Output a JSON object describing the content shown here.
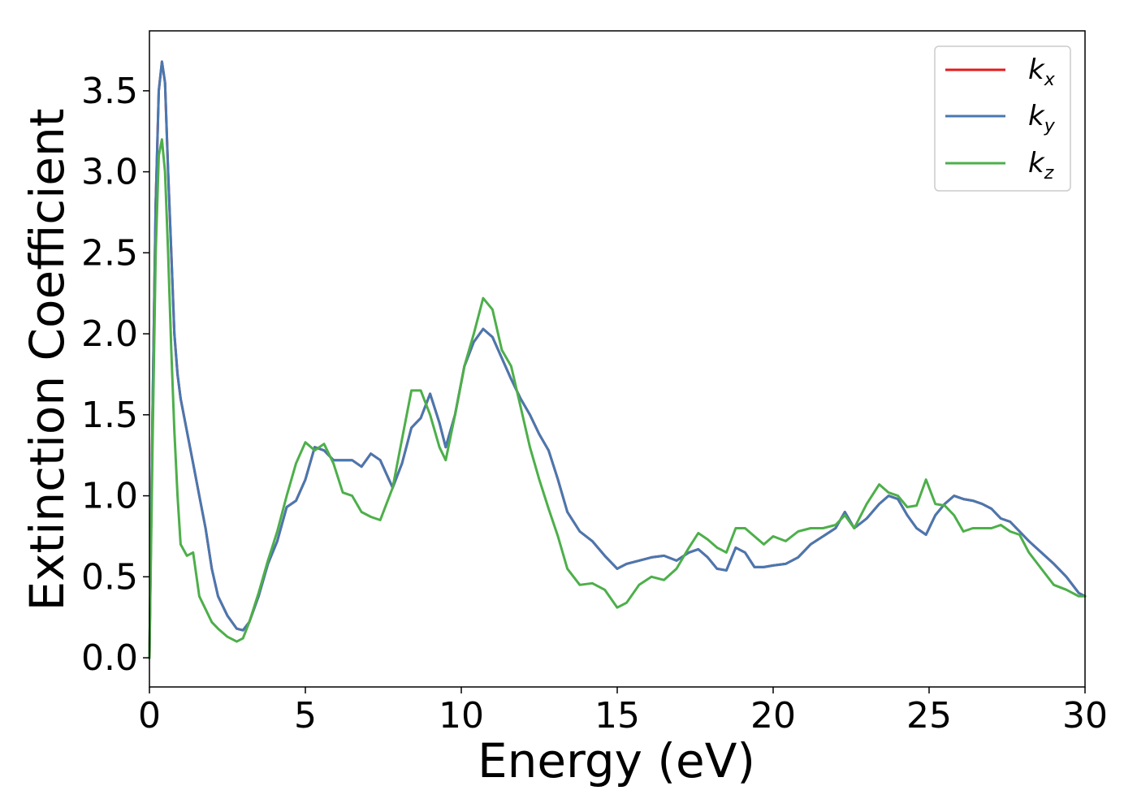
{
  "chart_data": {
    "type": "line",
    "title": "",
    "xlabel": "Energy (eV)",
    "ylabel": "Extinction Coefficient",
    "xlim": [
      0,
      30
    ],
    "ylim": [
      -0.18,
      3.87
    ],
    "x_ticks": [
      0,
      5,
      10,
      15,
      20,
      25,
      30
    ],
    "y_ticks": [
      0.0,
      0.5,
      1.0,
      1.5,
      2.0,
      2.5,
      3.0,
      3.5
    ],
    "grid": false,
    "legend_position": "top-right",
    "series": [
      {
        "name": "k",
        "subscript": "x",
        "color": "#e41a1c",
        "x": [
          0,
          0.1,
          0.2,
          0.3,
          0.4,
          0.5,
          0.6,
          0.7,
          0.8,
          0.9,
          1.0,
          1.2,
          1.4,
          1.6,
          1.8,
          2.0,
          2.2,
          2.5,
          2.8,
          3.0,
          3.2,
          3.5,
          3.8,
          4.1,
          4.4,
          4.7,
          5.0,
          5.3,
          5.6,
          5.9,
          6.2,
          6.5,
          6.8,
          7.1,
          7.4,
          7.8,
          8.1,
          8.4,
          8.7,
          9.0,
          9.3,
          9.5,
          9.8,
          10.1,
          10.4,
          10.7,
          11.0,
          11.3,
          11.6,
          11.9,
          12.2,
          12.5,
          12.8,
          13.1,
          13.4,
          13.8,
          14.2,
          14.6,
          15.0,
          15.3,
          15.7,
          16.1,
          16.5,
          16.9,
          17.3,
          17.6,
          17.9,
          18.2,
          18.5,
          18.8,
          19.1,
          19.4,
          19.7,
          20.0,
          20.4,
          20.8,
          21.2,
          21.6,
          22.0,
          22.3,
          22.6,
          23.0,
          23.4,
          23.7,
          24.0,
          24.3,
          24.6,
          24.9,
          25.2,
          25.5,
          25.8,
          26.1,
          26.4,
          26.7,
          27.0,
          27.3,
          27.6,
          27.9,
          28.2,
          28.6,
          29.0,
          29.4,
          29.8,
          30.0
        ],
        "values": [
          0.0,
          1.5,
          2.8,
          3.5,
          3.68,
          3.55,
          3.0,
          2.5,
          2.0,
          1.75,
          1.6,
          1.4,
          1.2,
          1.0,
          0.8,
          0.55,
          0.38,
          0.26,
          0.18,
          0.17,
          0.22,
          0.38,
          0.58,
          0.72,
          0.93,
          0.97,
          1.1,
          1.3,
          1.28,
          1.22,
          1.22,
          1.22,
          1.18,
          1.26,
          1.22,
          1.05,
          1.2,
          1.42,
          1.48,
          1.63,
          1.45,
          1.3,
          1.5,
          1.8,
          1.95,
          2.03,
          1.98,
          1.85,
          1.72,
          1.6,
          1.5,
          1.38,
          1.28,
          1.1,
          0.9,
          0.78,
          0.72,
          0.63,
          0.55,
          0.58,
          0.6,
          0.62,
          0.63,
          0.6,
          0.65,
          0.67,
          0.62,
          0.55,
          0.54,
          0.68,
          0.65,
          0.56,
          0.56,
          0.57,
          0.58,
          0.62,
          0.7,
          0.75,
          0.8,
          0.9,
          0.8,
          0.86,
          0.95,
          1.0,
          0.98,
          0.88,
          0.8,
          0.76,
          0.88,
          0.95,
          1.0,
          0.98,
          0.97,
          0.95,
          0.92,
          0.86,
          0.84,
          0.78,
          0.72,
          0.65,
          0.58,
          0.5,
          0.4,
          0.38
        ]
      },
      {
        "name": "k",
        "subscript": "y",
        "color": "#4878b0",
        "x": [
          0,
          0.1,
          0.2,
          0.3,
          0.4,
          0.5,
          0.6,
          0.7,
          0.8,
          0.9,
          1.0,
          1.2,
          1.4,
          1.6,
          1.8,
          2.0,
          2.2,
          2.5,
          2.8,
          3.0,
          3.2,
          3.5,
          3.8,
          4.1,
          4.4,
          4.7,
          5.0,
          5.3,
          5.6,
          5.9,
          6.2,
          6.5,
          6.8,
          7.1,
          7.4,
          7.8,
          8.1,
          8.4,
          8.7,
          9.0,
          9.3,
          9.5,
          9.8,
          10.1,
          10.4,
          10.7,
          11.0,
          11.3,
          11.6,
          11.9,
          12.2,
          12.5,
          12.8,
          13.1,
          13.4,
          13.8,
          14.2,
          14.6,
          15.0,
          15.3,
          15.7,
          16.1,
          16.5,
          16.9,
          17.3,
          17.6,
          17.9,
          18.2,
          18.5,
          18.8,
          19.1,
          19.4,
          19.7,
          20.0,
          20.4,
          20.8,
          21.2,
          21.6,
          22.0,
          22.3,
          22.6,
          23.0,
          23.4,
          23.7,
          24.0,
          24.3,
          24.6,
          24.9,
          25.2,
          25.5,
          25.8,
          26.1,
          26.4,
          26.7,
          27.0,
          27.3,
          27.6,
          27.9,
          28.2,
          28.6,
          29.0,
          29.4,
          29.8,
          30.0
        ],
        "values": [
          0.0,
          1.5,
          2.8,
          3.5,
          3.68,
          3.55,
          3.0,
          2.5,
          2.0,
          1.75,
          1.6,
          1.4,
          1.2,
          1.0,
          0.8,
          0.55,
          0.38,
          0.26,
          0.18,
          0.17,
          0.22,
          0.38,
          0.58,
          0.72,
          0.93,
          0.97,
          1.1,
          1.3,
          1.28,
          1.22,
          1.22,
          1.22,
          1.18,
          1.26,
          1.22,
          1.05,
          1.2,
          1.42,
          1.48,
          1.63,
          1.45,
          1.3,
          1.5,
          1.8,
          1.95,
          2.03,
          1.98,
          1.85,
          1.72,
          1.6,
          1.5,
          1.38,
          1.28,
          1.1,
          0.9,
          0.78,
          0.72,
          0.63,
          0.55,
          0.58,
          0.6,
          0.62,
          0.63,
          0.6,
          0.65,
          0.67,
          0.62,
          0.55,
          0.54,
          0.68,
          0.65,
          0.56,
          0.56,
          0.57,
          0.58,
          0.62,
          0.7,
          0.75,
          0.8,
          0.9,
          0.8,
          0.86,
          0.95,
          1.0,
          0.98,
          0.88,
          0.8,
          0.76,
          0.88,
          0.95,
          1.0,
          0.98,
          0.97,
          0.95,
          0.92,
          0.86,
          0.84,
          0.78,
          0.72,
          0.65,
          0.58,
          0.5,
          0.4,
          0.38
        ]
      },
      {
        "name": "k",
        "subscript": "z",
        "color": "#4daf4a",
        "x": [
          0,
          0.1,
          0.2,
          0.3,
          0.4,
          0.5,
          0.6,
          0.7,
          0.8,
          0.9,
          1.0,
          1.2,
          1.4,
          1.6,
          1.8,
          2.0,
          2.2,
          2.5,
          2.8,
          3.0,
          3.2,
          3.5,
          3.8,
          4.1,
          4.4,
          4.7,
          5.0,
          5.3,
          5.6,
          5.9,
          6.2,
          6.5,
          6.8,
          7.1,
          7.4,
          7.8,
          8.1,
          8.4,
          8.7,
          9.0,
          9.3,
          9.5,
          9.8,
          10.1,
          10.4,
          10.7,
          11.0,
          11.3,
          11.6,
          11.9,
          12.2,
          12.5,
          12.8,
          13.1,
          13.4,
          13.8,
          14.2,
          14.6,
          15.0,
          15.3,
          15.7,
          16.1,
          16.5,
          16.9,
          17.3,
          17.6,
          17.9,
          18.2,
          18.5,
          18.8,
          19.1,
          19.4,
          19.7,
          20.0,
          20.4,
          20.8,
          21.2,
          21.6,
          22.0,
          22.3,
          22.6,
          23.0,
          23.4,
          23.7,
          24.0,
          24.3,
          24.6,
          24.9,
          25.2,
          25.5,
          25.8,
          26.1,
          26.4,
          26.7,
          27.0,
          27.3,
          27.6,
          27.9,
          28.2,
          28.6,
          29.0,
          29.4,
          29.8,
          30.0
        ],
        "values": [
          0.0,
          1.3,
          2.5,
          3.1,
          3.2,
          3.0,
          2.5,
          1.9,
          1.4,
          1.0,
          0.7,
          0.63,
          0.65,
          0.38,
          0.3,
          0.22,
          0.18,
          0.13,
          0.1,
          0.12,
          0.22,
          0.4,
          0.6,
          0.78,
          1.0,
          1.2,
          1.33,
          1.28,
          1.32,
          1.2,
          1.02,
          1.0,
          0.9,
          0.87,
          0.85,
          1.05,
          1.35,
          1.65,
          1.65,
          1.5,
          1.3,
          1.22,
          1.5,
          1.8,
          2.0,
          2.22,
          2.15,
          1.9,
          1.8,
          1.55,
          1.3,
          1.1,
          0.92,
          0.75,
          0.55,
          0.45,
          0.46,
          0.42,
          0.31,
          0.34,
          0.45,
          0.5,
          0.48,
          0.55,
          0.68,
          0.77,
          0.73,
          0.68,
          0.65,
          0.8,
          0.8,
          0.75,
          0.7,
          0.75,
          0.72,
          0.78,
          0.8,
          0.8,
          0.82,
          0.88,
          0.8,
          0.95,
          1.07,
          1.02,
          1.0,
          0.93,
          0.94,
          1.1,
          0.95,
          0.94,
          0.88,
          0.78,
          0.8,
          0.8,
          0.8,
          0.82,
          0.78,
          0.76,
          0.65,
          0.55,
          0.45,
          0.42,
          0.38,
          0.38
        ]
      }
    ]
  }
}
